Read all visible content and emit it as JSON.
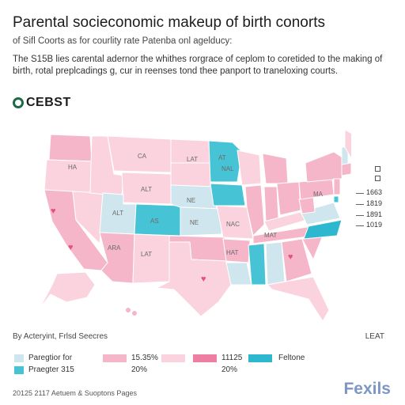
{
  "header": {
    "title": "Parental socieconomic makeup of birth conorts",
    "subtitle": "of Sifl Coorts as for courlity rate Patenba onl agelducy:",
    "description": "The S15B lies carental adernor the whithes rorgrace of ceplom to coretided to the making of birth, rotal preplcadings g, cur in reenses tond thee panport to traneloxing courts."
  },
  "brand": {
    "name": "CEBST"
  },
  "map": {
    "state_labels": [
      "CA",
      "HA",
      "ALT",
      "ALT",
      "AS",
      "NE",
      "LAT",
      "NE",
      "NAC",
      "HAT",
      "MA",
      "NAL",
      "AT",
      "MAT",
      "ARA",
      "LAT"
    ],
    "side_values": [
      "1663",
      "1819",
      "1891",
      "1019"
    ],
    "colors": {
      "pale_pink": "#fad3de",
      "pink": "#f5b6c9",
      "light_blue": "#cfe6ee",
      "teal": "#47c3d6",
      "deep_pink": "#ee7fa3"
    }
  },
  "footer": {
    "source_left": "By Acteryint, Frlsd Seecres",
    "source_right": "LEAT",
    "note": "20125 2117 Aetuem & Suoptons Pages",
    "logo": "Fexils"
  },
  "legend": {
    "row1_left": "Paregtior for",
    "row2_left": "Praegter 315",
    "range_a": "15.35%",
    "range_a2": "20%",
    "range_b": "11125",
    "range_b2": "20%",
    "right_label": "Feltone",
    "colors": [
      "#cfe6ee",
      "#47c3d6",
      "#f5b6c9",
      "#fad3de",
      "#ee7fa3",
      "#2db8d0"
    ]
  }
}
